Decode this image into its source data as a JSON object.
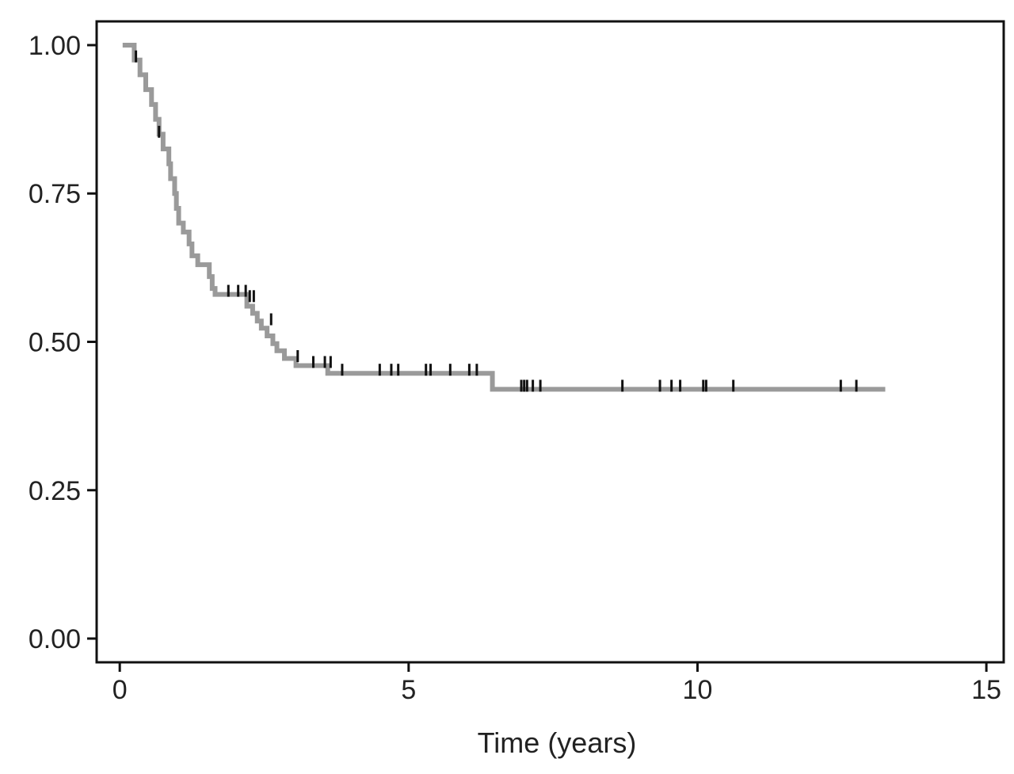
{
  "chart_data": {
    "type": "line",
    "title": "",
    "subtitle": "",
    "xlabel": "Time (years)",
    "ylabel": "",
    "xlim": [
      -0.4,
      15.3
    ],
    "ylim": [
      -0.04,
      1.04
    ],
    "x_ticks": [
      0,
      5,
      10,
      15
    ],
    "x_tick_labels": [
      "0",
      "5",
      "10",
      "15"
    ],
    "y_ticks": [
      0,
      0.25,
      0.5,
      0.75,
      1
    ],
    "y_tick_labels": [
      "0.00",
      "0.25",
      "0.50",
      "0.75",
      "1.00"
    ],
    "grid": false,
    "legend": "none",
    "series": [
      {
        "line_color": "#9a9a9a",
        "censor_color": "#111111",
        "steps": [
          [
            0.05,
            1.0
          ],
          [
            0.25,
            0.975
          ],
          [
            0.35,
            0.95
          ],
          [
            0.45,
            0.925
          ],
          [
            0.55,
            0.9
          ],
          [
            0.62,
            0.875
          ],
          [
            0.68,
            0.85
          ],
          [
            0.75,
            0.825
          ],
          [
            0.85,
            0.8
          ],
          [
            0.88,
            0.775
          ],
          [
            0.95,
            0.75
          ],
          [
            0.98,
            0.725
          ],
          [
            1.02,
            0.7
          ],
          [
            1.1,
            0.685
          ],
          [
            1.2,
            0.665
          ],
          [
            1.25,
            0.645
          ],
          [
            1.35,
            0.63
          ],
          [
            1.55,
            0.61
          ],
          [
            1.6,
            0.59
          ],
          [
            1.65,
            0.58
          ],
          [
            2.2,
            0.56
          ],
          [
            2.3,
            0.548
          ],
          [
            2.38,
            0.535
          ],
          [
            2.45,
            0.523
          ],
          [
            2.55,
            0.51
          ],
          [
            2.65,
            0.497
          ],
          [
            2.72,
            0.485
          ],
          [
            2.85,
            0.472
          ],
          [
            3.05,
            0.46
          ],
          [
            3.6,
            0.447
          ],
          [
            6.45,
            0.42
          ],
          [
            13.25,
            0.42
          ]
        ],
        "censored": [
          [
            0.28,
            0.975
          ],
          [
            0.68,
            0.848
          ],
          [
            1.88,
            0.58
          ],
          [
            2.05,
            0.58
          ],
          [
            2.18,
            0.58
          ],
          [
            2.25,
            0.571
          ],
          [
            2.32,
            0.571
          ],
          [
            2.62,
            0.532
          ],
          [
            3.08,
            0.47
          ],
          [
            3.35,
            0.46
          ],
          [
            3.55,
            0.46
          ],
          [
            3.65,
            0.46
          ],
          [
            3.85,
            0.447
          ],
          [
            4.5,
            0.447
          ],
          [
            4.7,
            0.447
          ],
          [
            4.82,
            0.447
          ],
          [
            5.3,
            0.447
          ],
          [
            5.38,
            0.447
          ],
          [
            5.72,
            0.447
          ],
          [
            6.05,
            0.447
          ],
          [
            6.18,
            0.447
          ],
          [
            6.95,
            0.42
          ],
          [
            7.0,
            0.42
          ],
          [
            7.05,
            0.42
          ],
          [
            7.15,
            0.42
          ],
          [
            7.28,
            0.42
          ],
          [
            8.7,
            0.42
          ],
          [
            9.35,
            0.42
          ],
          [
            9.55,
            0.42
          ],
          [
            9.7,
            0.42
          ],
          [
            10.1,
            0.42
          ],
          [
            10.15,
            0.42
          ],
          [
            10.62,
            0.42
          ],
          [
            12.48,
            0.42
          ],
          [
            12.75,
            0.42
          ]
        ]
      }
    ]
  }
}
